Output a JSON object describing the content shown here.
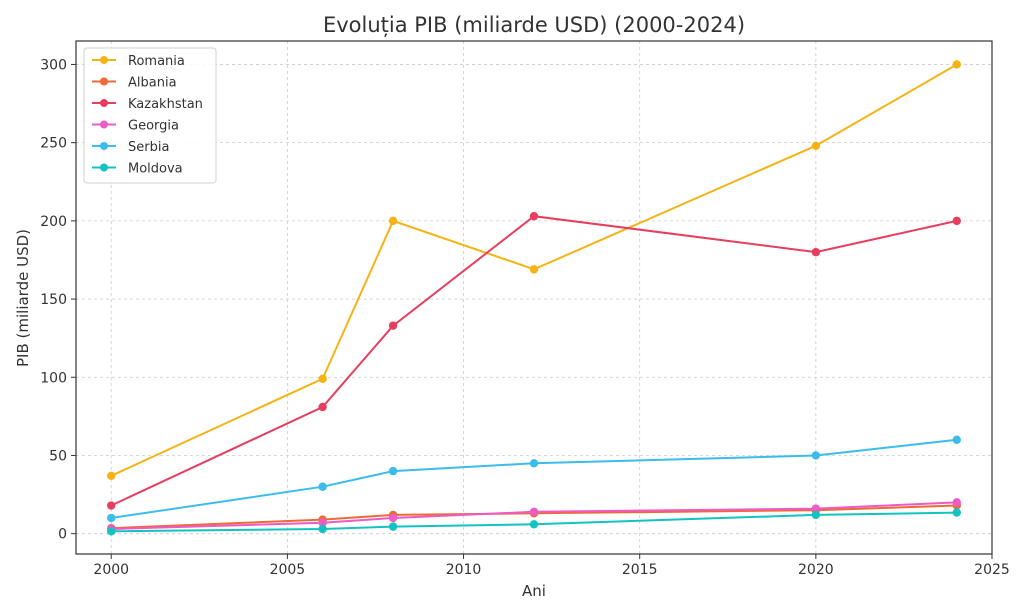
{
  "chart_data": {
    "type": "line",
    "title": "Evoluția PIB (miliarde USD) (2000-2024)",
    "xlabel": "Ani",
    "ylabel": "PIB (miliarde USD)",
    "xlim": [
      1999,
      2025
    ],
    "ylim": [
      -13,
      315
    ],
    "x_ticks": [
      2000,
      2005,
      2010,
      2015,
      2020,
      2025
    ],
    "y_ticks": [
      0,
      50,
      100,
      150,
      200,
      250,
      300
    ],
    "grid": true,
    "legend_position": "top-left",
    "x": [
      2000,
      2006,
      2008,
      2012,
      2020,
      2024
    ],
    "series": [
      {
        "name": "Romania",
        "color": "#F5B414",
        "values": [
          37,
          99,
          200,
          169,
          248,
          300
        ]
      },
      {
        "name": "Albania",
        "color": "#EE6A35",
        "values": [
          3.5,
          9,
          12,
          13,
          15,
          18
        ]
      },
      {
        "name": "Kazakhstan",
        "color": "#E63E5E",
        "values": [
          18,
          81,
          133,
          203,
          180,
          200
        ]
      },
      {
        "name": "Georgia",
        "color": "#EC5BC6",
        "values": [
          3,
          7,
          10,
          14,
          16,
          20
        ]
      },
      {
        "name": "Serbia",
        "color": "#3BBCEC",
        "values": [
          10,
          30,
          40,
          45,
          50,
          60
        ]
      },
      {
        "name": "Moldova",
        "color": "#13C2C2",
        "values": [
          1.5,
          3,
          4.5,
          6,
          12,
          13.5
        ]
      }
    ]
  }
}
